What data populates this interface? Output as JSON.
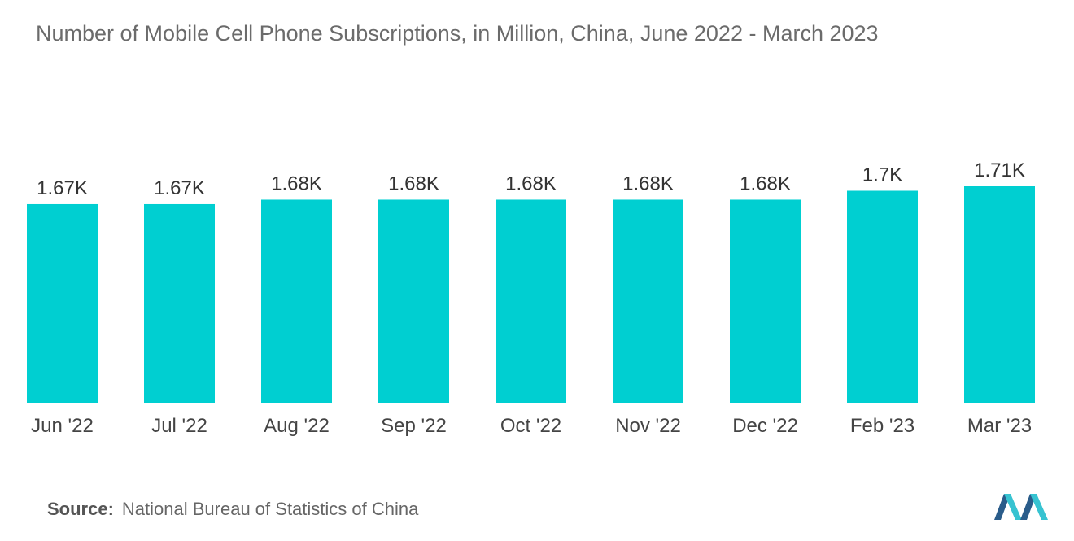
{
  "chart_data": {
    "type": "bar",
    "title": "Number of Mobile Cell Phone Subscriptions, in  Million, China, June 2022 - March 2023",
    "categories": [
      "Jun '22",
      "Jul '22",
      "Aug '22",
      "Sep '22",
      "Oct '22",
      "Nov '22",
      "Dec '22",
      "Feb '23",
      "Mar '23"
    ],
    "values": [
      1670,
      1670,
      1680,
      1680,
      1680,
      1680,
      1680,
      1700,
      1710
    ],
    "data_labels": [
      "1.67K",
      "1.67K",
      "1.68K",
      "1.68K",
      "1.68K",
      "1.68K",
      "1.68K",
      "1.7K",
      "1.71K"
    ],
    "xlabel": "",
    "ylabel": "",
    "ylim": [
      0,
      1710
    ],
    "grid": false,
    "legend": "none",
    "bar_color": "#00cfd1"
  },
  "source": {
    "label": "Source:",
    "text": "National Bureau of Statistics of China"
  },
  "logo": {
    "icon": "mordor-intelligence-logo-icon",
    "colors": [
      "#2a5c8a",
      "#37c3d1"
    ]
  }
}
